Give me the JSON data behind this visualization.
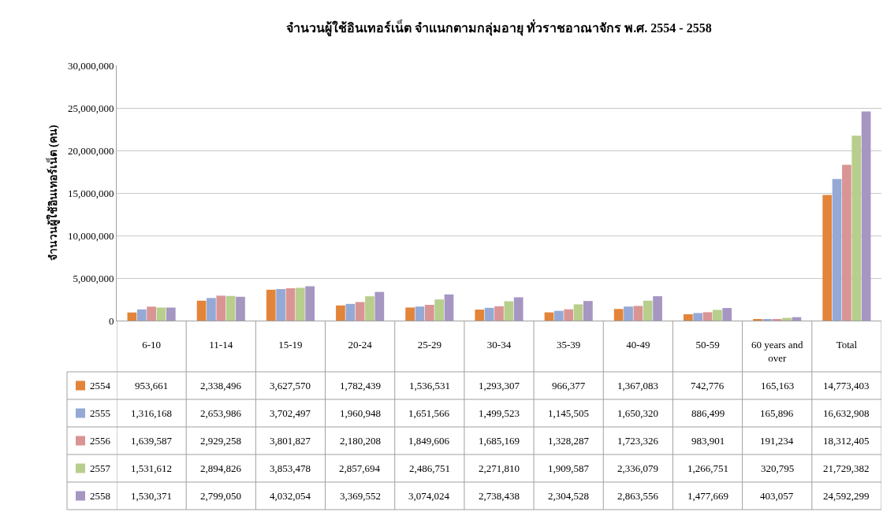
{
  "chart_data": {
    "type": "bar",
    "title": "จำนวนผู้ใช้อินเทอร์เน็ต จำแนกตามกลุ่มอายุ ทั่วราชอาณาจักร พ.ศ. 2554 - 2558",
    "ylabel": "จำนวนผู้ใช้อินเทอร์เน็ต (คน)",
    "categories": [
      "6-10",
      "11-14",
      "15-19",
      "20-24",
      "25-29",
      "30-34",
      "35-39",
      "40-49",
      "50-59",
      "60 years and over",
      "Total"
    ],
    "series": [
      {
        "name": "2554",
        "color": "#e2843a",
        "values": [
          953661,
          2338496,
          3627570,
          1782439,
          1536531,
          1293307,
          966377,
          1367083,
          742776,
          165163,
          14773403
        ],
        "value_labels": [
          "953,661",
          "2,338,496",
          "3,627,570",
          "1,782,439",
          "1,536,531",
          "1,293,307",
          "966,377",
          "1,367,083",
          "742,776",
          "165,163",
          "14,773,403"
        ]
      },
      {
        "name": "2555",
        "color": "#95a9d6",
        "values": [
          1316168,
          2653986,
          3702497,
          1960948,
          1651566,
          1499523,
          1145505,
          1650320,
          886499,
          165896,
          16632908
        ],
        "value_labels": [
          "1,316,168",
          "2,653,986",
          "3,702,497",
          "1,960,948",
          "1,651,566",
          "1,499,523",
          "1,145,505",
          "1,650,320",
          "886,499",
          "165,896",
          "16,632,908"
        ]
      },
      {
        "name": "2556",
        "color": "#d99594",
        "values": [
          1639587,
          2929258,
          3801827,
          2180208,
          1849606,
          1685169,
          1328287,
          1723326,
          983901,
          191234,
          18312405
        ],
        "value_labels": [
          "1,639,587",
          "2,929,258",
          "3,801,827",
          "2,180,208",
          "1,849,606",
          "1,685,169",
          "1,328,287",
          "1,723,326",
          "983,901",
          "191,234",
          "18,312,405"
        ]
      },
      {
        "name": "2557",
        "color": "#b7ce8c",
        "values": [
          1531612,
          2894826,
          3853478,
          2857694,
          2486751,
          2271810,
          1909587,
          2336079,
          1266751,
          320795,
          21729382
        ],
        "value_labels": [
          "1,531,612",
          "2,894,826",
          "3,853,478",
          "2,857,694",
          "2,486,751",
          "2,271,810",
          "1,909,587",
          "2,336,079",
          "1,266,751",
          "320,795",
          "21,729,382"
        ]
      },
      {
        "name": "2558",
        "color": "#a596c2",
        "values": [
          1530371,
          2799050,
          4032054,
          3369552,
          3074024,
          2738438,
          2304528,
          2863556,
          1477669,
          403057,
          24592299
        ],
        "value_labels": [
          "1,530,371",
          "2,799,050",
          "4,032,054",
          "3,369,552",
          "3,074,024",
          "2,738,438",
          "2,304,528",
          "2,863,556",
          "1,477,669",
          "403,057",
          "24,592,299"
        ]
      }
    ],
    "ylim": [
      0,
      30000000
    ],
    "yticks": [
      {
        "value": 0,
        "label": "0"
      },
      {
        "value": 5000000,
        "label": "5,000,000"
      },
      {
        "value": 10000000,
        "label": "10,000,000"
      },
      {
        "value": 15000000,
        "label": "15,000,000"
      },
      {
        "value": 20000000,
        "label": "20,000,000"
      },
      {
        "value": 25000000,
        "label": "25,000,000"
      },
      {
        "value": 30000000,
        "label": "30,000,000"
      }
    ],
    "grid": "y",
    "legend": "bottom left"
  }
}
